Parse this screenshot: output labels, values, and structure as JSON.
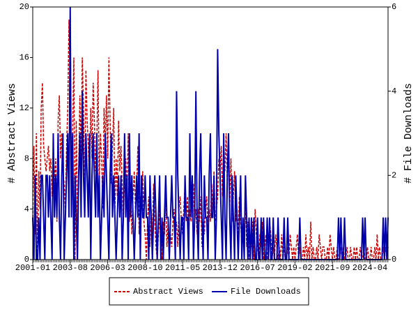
{
  "chart_data": {
    "type": "line",
    "y_label": "# Abstract Views",
    "y2_label": "# File Downloads",
    "categories": [
      "2001-01",
      null,
      null,
      null,
      null,
      null,
      null,
      null,
      null,
      null,
      null,
      null,
      null,
      null,
      null,
      null,
      null,
      null,
      null,
      null,
      null,
      null,
      null,
      null,
      null,
      null,
      null,
      null,
      null,
      null,
      null,
      "2003-08",
      null,
      null,
      null,
      null,
      null,
      null,
      null,
      null,
      null,
      null,
      null,
      null,
      null,
      null,
      null,
      null,
      null,
      null,
      null,
      null,
      null,
      null,
      null,
      null,
      null,
      null,
      null,
      null,
      null,
      null,
      "2006-03",
      null,
      null,
      null,
      null,
      null,
      null,
      null,
      null,
      null,
      null,
      null,
      null,
      null,
      null,
      null,
      null,
      null,
      null,
      null,
      null,
      null,
      null,
      null,
      null,
      null,
      null,
      null,
      null,
      null,
      null,
      "2008-10",
      null,
      null,
      null,
      null,
      null,
      null,
      null,
      null,
      null,
      null,
      null,
      null,
      null,
      null,
      null,
      null,
      null,
      null,
      null,
      null,
      null,
      null,
      null,
      null,
      null,
      null,
      null,
      null,
      null,
      null,
      "2011-05",
      null,
      null,
      null,
      null,
      null,
      null,
      null,
      null,
      null,
      null,
      null,
      null,
      null,
      null,
      null,
      null,
      null,
      null,
      null,
      null,
      null,
      null,
      null,
      null,
      null,
      null,
      null,
      null,
      null,
      null,
      "2013-12",
      null,
      null,
      null,
      null,
      null,
      null,
      null,
      null,
      null,
      null,
      null,
      null,
      null,
      null,
      null,
      null,
      null,
      null,
      null,
      null,
      null,
      null,
      null,
      null,
      null,
      null,
      null,
      null,
      null,
      null,
      "2016-07",
      null,
      null,
      null,
      null,
      null,
      null,
      null,
      null,
      null,
      null,
      null,
      null,
      null,
      null,
      null,
      null,
      null,
      null,
      null,
      null,
      null,
      null,
      null,
      null,
      null,
      null,
      null,
      null,
      null,
      null,
      "2019-02",
      null,
      null,
      null,
      null,
      null,
      null,
      null,
      null,
      null,
      null,
      null,
      null,
      null,
      null,
      null,
      null,
      null,
      null,
      null,
      null,
      null,
      null,
      null,
      null,
      null,
      null,
      null,
      null,
      null,
      null,
      "2021-09",
      null,
      null,
      null,
      null,
      null,
      null,
      null,
      null,
      null,
      null,
      null,
      null,
      null,
      null,
      null,
      null,
      null,
      null,
      null,
      null,
      null,
      null,
      null,
      null,
      null,
      null,
      null,
      null,
      null,
      null,
      "2024-04",
      null,
      null,
      null,
      null,
      null,
      null,
      null,
      null,
      null,
      null,
      null,
      null,
      null,
      null,
      null
    ],
    "series": [
      {
        "name": "Abstract Views",
        "color": "#cc0000",
        "line_style": "dashed",
        "axis": "y",
        "values": [
          3,
          9,
          2,
          10,
          0,
          7,
          4,
          12,
          14,
          9,
          8,
          7,
          8,
          9,
          7,
          8,
          5,
          9,
          6,
          8,
          3,
          11,
          13,
          8,
          10,
          7,
          6,
          4,
          9,
          12,
          19,
          14,
          8,
          10,
          16,
          0,
          11,
          3,
          7,
          13,
          8,
          16,
          12,
          5,
          15,
          11,
          9,
          6,
          12,
          8,
          14,
          11,
          7,
          9,
          15,
          6,
          10,
          8,
          4,
          12,
          9,
          13,
          8,
          16,
          11,
          6,
          9,
          12,
          4,
          8,
          5,
          11,
          7,
          9,
          6,
          3,
          7,
          8,
          5,
          10,
          3,
          6,
          2,
          5,
          7,
          4,
          6,
          9,
          2,
          5,
          4,
          7,
          3,
          2,
          0,
          3,
          5,
          1,
          4,
          2,
          6,
          3,
          1,
          0,
          2,
          4,
          1,
          0,
          3,
          2,
          5,
          1,
          3,
          0,
          2,
          1,
          3,
          4,
          2,
          3,
          1,
          4,
          5,
          3,
          2,
          4,
          6,
          3,
          5,
          2,
          4,
          3,
          5,
          6,
          3,
          4,
          2,
          4,
          3,
          5,
          1,
          3,
          2,
          4,
          5,
          2,
          4,
          3,
          6,
          4,
          7,
          3,
          4,
          5,
          8,
          7,
          9,
          5,
          8,
          7,
          10,
          6,
          9,
          4,
          8,
          3,
          5,
          7,
          3,
          4,
          2,
          5,
          3,
          1,
          3,
          2,
          6,
          1,
          3,
          0,
          2,
          1,
          3,
          0,
          4,
          2,
          1,
          0,
          2,
          1,
          3,
          0,
          1,
          2,
          0,
          1,
          3,
          2,
          0,
          1,
          0,
          2,
          1,
          0,
          1,
          0,
          2,
          0,
          1,
          0,
          0,
          1,
          0,
          2,
          1,
          0,
          1,
          0,
          1,
          2,
          0,
          1,
          0,
          0,
          1,
          0,
          2,
          0,
          1,
          0,
          3,
          0,
          1,
          0,
          0,
          1,
          0,
          2,
          1,
          0,
          1,
          1,
          0,
          0,
          1,
          0,
          2,
          1,
          0,
          1,
          0,
          0,
          1,
          0,
          0,
          1,
          0,
          1,
          0,
          0,
          1,
          0,
          0,
          1,
          0,
          0,
          1,
          0,
          1,
          0,
          0,
          1,
          0,
          0,
          1,
          0,
          0,
          1,
          0,
          0,
          1,
          0,
          0,
          1,
          0,
          2,
          0,
          1,
          0,
          0,
          1,
          0,
          1,
          0,
          1
        ]
      },
      {
        "name": "File Downloads",
        "color": "#0000aa",
        "line_style": "solid",
        "axis": "y2",
        "values": [
          1,
          0,
          2,
          0,
          0,
          1,
          0,
          2,
          2,
          1,
          0,
          2,
          2,
          1,
          2,
          1,
          0,
          3,
          1,
          2,
          1,
          3,
          1,
          0,
          2,
          3,
          0,
          1,
          2,
          3,
          1,
          6,
          1,
          3,
          0,
          2,
          1,
          0,
          2,
          3,
          1,
          4,
          2,
          1,
          3,
          2,
          1,
          3,
          0,
          2,
          3,
          2,
          1,
          3,
          1,
          2,
          0,
          1,
          2,
          1,
          3,
          2,
          1,
          0,
          2,
          3,
          1,
          2,
          1,
          0,
          1,
          2,
          1,
          2,
          0,
          1,
          3,
          1,
          2,
          0,
          3,
          1,
          2,
          1,
          0,
          1,
          2,
          1,
          3,
          0,
          2,
          1,
          1,
          2,
          1,
          1,
          0,
          2,
          1,
          0,
          1,
          2,
          1,
          0,
          1,
          2,
          0,
          1,
          0,
          1,
          2,
          1,
          1,
          0,
          1,
          2,
          1,
          1,
          0,
          4,
          2,
          1,
          0,
          1,
          1,
          0,
          2,
          1,
          1,
          0,
          3,
          1,
          2,
          0,
          1,
          4,
          1,
          0,
          2,
          3,
          1,
          0,
          2,
          1,
          1,
          0,
          2,
          3,
          1,
          1,
          2,
          0,
          1,
          5,
          3,
          2,
          1,
          0,
          3,
          1,
          0,
          2,
          3,
          1,
          0,
          2,
          1,
          0,
          2,
          1,
          0,
          1,
          2,
          0,
          1,
          0,
          2,
          1,
          0,
          1,
          0,
          1,
          0,
          1,
          0,
          0,
          1,
          0,
          0,
          1,
          0,
          1,
          0,
          0,
          1,
          0,
          1,
          0,
          0,
          1,
          0,
          0,
          0,
          1,
          0,
          0,
          0,
          0,
          1,
          0,
          0,
          1,
          0,
          0,
          0,
          0,
          0,
          0,
          0,
          0,
          0,
          1,
          0,
          0,
          0,
          0,
          0,
          0,
          0,
          0,
          0,
          0,
          0,
          0,
          0,
          0,
          0,
          0,
          0,
          0,
          0,
          0,
          0,
          0,
          0,
          0,
          0,
          0,
          0,
          0,
          0,
          0,
          0,
          1,
          0,
          1,
          0,
          0,
          1,
          0,
          0,
          0,
          0,
          0,
          0,
          0,
          0,
          0,
          0,
          0,
          0,
          0,
          0,
          1,
          0,
          1,
          0,
          0,
          0,
          0,
          0,
          0,
          0,
          0,
          0,
          0,
          0,
          0,
          0,
          0,
          1,
          0,
          1,
          0,
          1
        ]
      }
    ],
    "ylim": [
      0,
      20
    ],
    "yticks": [
      0,
      4,
      8,
      12,
      16,
      20
    ],
    "y2lim": [
      0,
      6
    ],
    "y2ticks": [
      0,
      2,
      4,
      6
    ],
    "grid": false,
    "legend": "bottom"
  }
}
